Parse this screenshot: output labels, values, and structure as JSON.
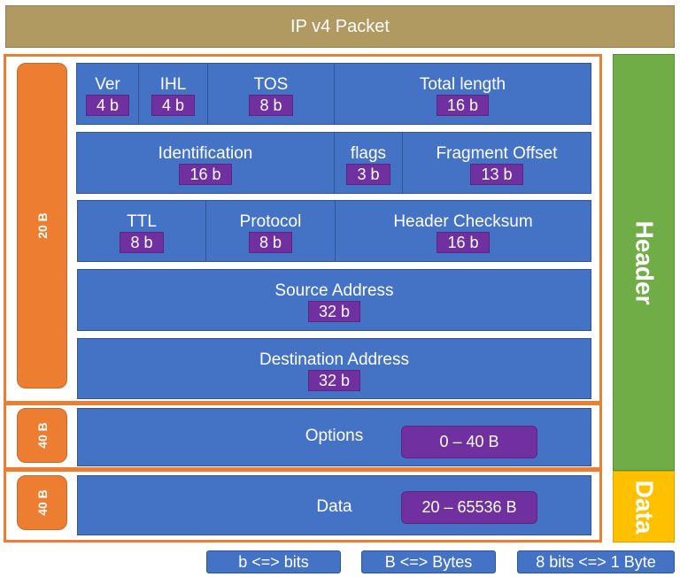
{
  "title": "IP v4 Packet",
  "header_label": "Header",
  "data_label": "Data",
  "header_size": "20 B",
  "options_size": "40 B",
  "data_size": "40 B",
  "rows": [
    [
      {
        "name": "Ver",
        "bits": "4 b"
      },
      {
        "name": "IHL",
        "bits": "4 b"
      },
      {
        "name": "TOS",
        "bits": "8 b"
      },
      {
        "name": "Total length",
        "bits": "16 b"
      }
    ],
    [
      {
        "name": "Identification",
        "bits": "16 b"
      },
      {
        "name": "flags",
        "bits": "3 b"
      },
      {
        "name": "Fragment Offset",
        "bits": "13 b"
      }
    ],
    [
      {
        "name": "TTL",
        "bits": "8 b"
      },
      {
        "name": "Protocol",
        "bits": "8 b"
      },
      {
        "name": "Header Checksum",
        "bits": "16 b"
      }
    ],
    [
      {
        "name": "Source Address",
        "bits": "32 b"
      }
    ],
    [
      {
        "name": "Destination Address",
        "bits": "32 b"
      }
    ]
  ],
  "options": {
    "name": "Options",
    "range": "0 – 40 B"
  },
  "data": {
    "name": "Data",
    "range": "20 – 65536 B"
  },
  "legend": [
    "b <=> bits",
    "B <=> Bytes",
    "8 bits <=> 1 Byte"
  ],
  "colors": {
    "title": "#B09A62",
    "field": "#4472C4",
    "badge": "#7030A0",
    "frame": "#ED7D31",
    "header": "#70AD47",
    "data": "#FFC000"
  }
}
